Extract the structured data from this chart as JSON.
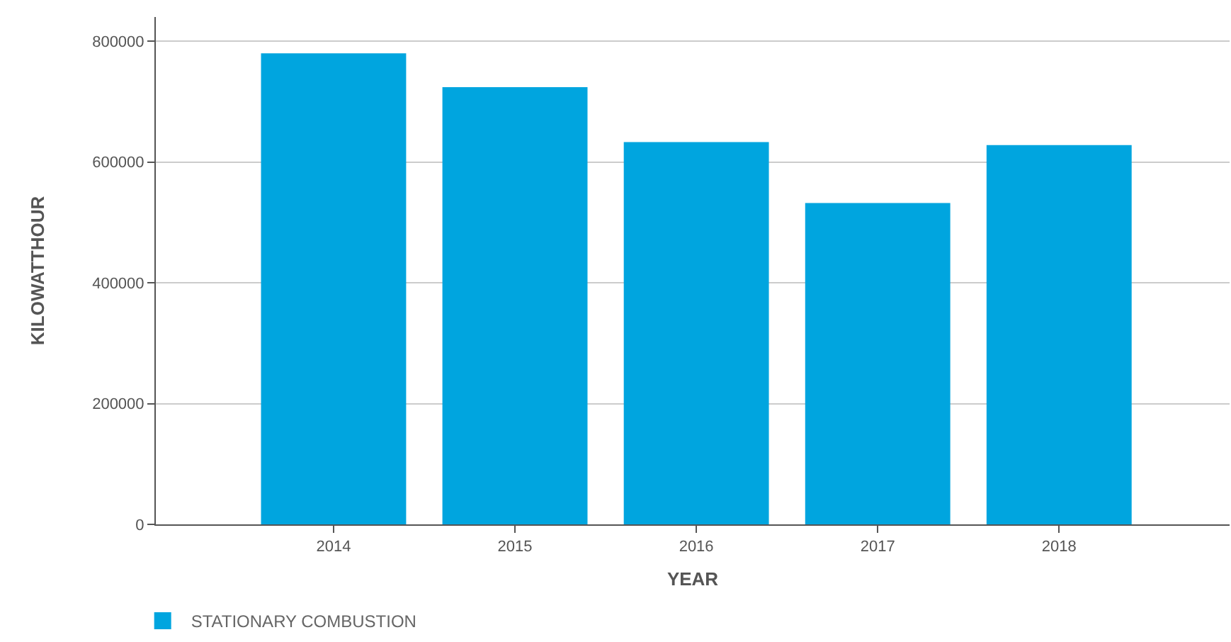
{
  "chart_data": {
    "type": "bar",
    "xlabel": "YEAR",
    "ylabel": "KILOWATTHOUR",
    "categories": [
      "2014",
      "2015",
      "2016",
      "2017",
      "2018"
    ],
    "series": [
      {
        "name": "STATIONARY COMBUSTION",
        "color": "#00a5df",
        "values": [
          780000,
          724000,
          633000,
          532000,
          628000
        ]
      }
    ],
    "ylim": [
      0,
      840000
    ],
    "yticks": [
      0,
      200000,
      400000,
      600000,
      800000
    ],
    "grid": "y",
    "legend": "bottom left"
  }
}
